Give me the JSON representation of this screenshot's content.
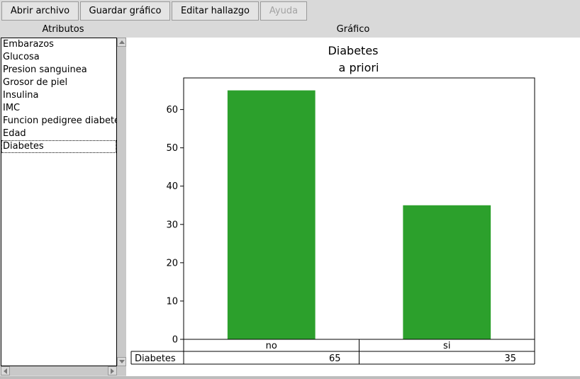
{
  "toolbar": {
    "open_label": "Abrir archivo",
    "save_label": "Guardar gráfico",
    "edit_label": "Editar hallazgo",
    "help_label": "Ayuda"
  },
  "panels": {
    "attributes_header": "Atributos",
    "chart_header": "Gráfico"
  },
  "attributes": {
    "items": [
      "Embarazos",
      "Glucosa",
      "Presion sanguinea",
      "Grosor de piel",
      "Insulina",
      "IMC",
      "Funcion pedigree diabetes",
      "Edad",
      "Diabetes"
    ],
    "selected": "Diabetes"
  },
  "chart_data": {
    "type": "bar",
    "title": "Diabetes",
    "subtitle": "a priori",
    "categories": [
      "no",
      "si"
    ],
    "values": [
      65,
      35
    ],
    "ylim": [
      0,
      68.25
    ],
    "yticks": [
      0,
      10,
      20,
      30,
      40,
      50,
      60
    ],
    "bar_color": "#2ca02c",
    "grid": false,
    "table": {
      "row_label": "Diabetes",
      "values": [
        "65",
        "35"
      ]
    }
  }
}
